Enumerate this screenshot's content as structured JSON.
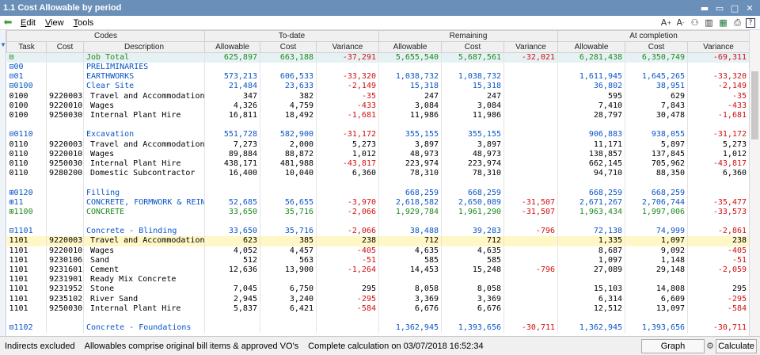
{
  "window": {
    "title": "1.1 Cost  Allowable by period"
  },
  "menu": [
    "Edit",
    "View",
    "Tools"
  ],
  "colors": {
    "titlebar": "#6a8fb8",
    "blue": "#0a55c8",
    "green": "#1c8a1c",
    "red": "#d01010",
    "highlight": "#fff8c6"
  },
  "groups": [
    "Codes",
    "To-date",
    "Remaining",
    "At completion"
  ],
  "columns": [
    "Task",
    "Cost",
    "Description",
    "Allowable",
    "Cost",
    "Variance",
    "Allowable",
    "Cost",
    "Variance",
    "Allowable",
    "Cost",
    "Variance"
  ],
  "rows": [
    {
      "cls": "head-row",
      "task": "⊟",
      "cost": "",
      "desc": "Job Total",
      "vals": [
        "625,897",
        "663,188",
        "-37,291",
        "5,655,540",
        "5,687,561",
        "-32,021",
        "6,281,438",
        "6,350,749",
        "-69,311"
      ],
      "color": "green",
      "valColors": [
        "green",
        "green",
        "red",
        "green",
        "green",
        "red",
        "green",
        "green",
        "red"
      ]
    },
    {
      "task": "⊟00",
      "cost": "",
      "desc": "PRELIMINARIES",
      "vals": [
        "",
        "",
        "",
        "",
        "",
        "",
        "",
        "",
        ""
      ],
      "color": "blue",
      "valColors": []
    },
    {
      "task": "⊟01",
      "cost": "",
      "desc": "EARTHWORKS",
      "vals": [
        "573,213",
        "606,533",
        "-33,320",
        "1,038,732",
        "1,038,732",
        "",
        "1,611,945",
        "1,645,265",
        "-33,320"
      ],
      "color": "blue",
      "valColors": [
        "blue",
        "blue",
        "red",
        "blue",
        "blue",
        "",
        "blue",
        "blue",
        "red"
      ]
    },
    {
      "task": "⊟0100",
      "cost": "",
      "desc": "Clear Site",
      "vals": [
        "21,484",
        "23,633",
        "-2,149",
        "15,318",
        "15,318",
        "",
        "36,802",
        "38,951",
        "-2,149"
      ],
      "color": "blue",
      "valColors": [
        "blue",
        "blue",
        "red",
        "blue",
        "blue",
        "",
        "blue",
        "blue",
        "red"
      ]
    },
    {
      "task": "0100",
      "cost": "9220003",
      "desc": "Travel and Accommodation",
      "vals": [
        "347",
        "382",
        "-35",
        "247",
        "247",
        "",
        "595",
        "629",
        "-35"
      ],
      "color": "blk",
      "valColors": [
        "blk",
        "blk",
        "red",
        "blk",
        "blk",
        "",
        "blk",
        "blk",
        "red"
      ]
    },
    {
      "task": "0100",
      "cost": "9220010",
      "desc": "Wages",
      "vals": [
        "4,326",
        "4,759",
        "-433",
        "3,084",
        "3,084",
        "",
        "7,410",
        "7,843",
        "-433"
      ],
      "color": "blk",
      "valColors": [
        "blk",
        "blk",
        "red",
        "blk",
        "blk",
        "",
        "blk",
        "blk",
        "red"
      ]
    },
    {
      "task": "0100",
      "cost": "9250030",
      "desc": "Internal Plant Hire",
      "vals": [
        "16,811",
        "18,492",
        "-1,681",
        "11,986",
        "11,986",
        "",
        "28,797",
        "30,478",
        "-1,681"
      ],
      "color": "blk",
      "valColors": [
        "blk",
        "blk",
        "red",
        "blk",
        "blk",
        "",
        "blk",
        "blk",
        "red"
      ]
    },
    {
      "cls": "blank",
      "task": "",
      "cost": "",
      "desc": "",
      "vals": [
        "",
        "",
        "",
        "",
        "",
        "",
        "",
        "",
        ""
      ],
      "color": "blk",
      "valColors": []
    },
    {
      "task": "⊟0110",
      "cost": "",
      "desc": "Excavation",
      "vals": [
        "551,728",
        "582,900",
        "-31,172",
        "355,155",
        "355,155",
        "",
        "906,883",
        "938,055",
        "-31,172"
      ],
      "color": "blue",
      "valColors": [
        "blue",
        "blue",
        "red",
        "blue",
        "blue",
        "",
        "blue",
        "blue",
        "red"
      ]
    },
    {
      "task": "0110",
      "cost": "9220003",
      "desc": "Travel and Accommodation",
      "vals": [
        "7,273",
        "2,000",
        "5,273",
        "3,897",
        "3,897",
        "",
        "11,171",
        "5,897",
        "5,273"
      ],
      "color": "blk",
      "valColors": [
        "blk",
        "blk",
        "blk",
        "blk",
        "blk",
        "",
        "blk",
        "blk",
        "blk"
      ]
    },
    {
      "task": "0110",
      "cost": "9220010",
      "desc": "Wages",
      "vals": [
        "89,884",
        "88,872",
        "1,012",
        "48,973",
        "48,973",
        "",
        "138,857",
        "137,845",
        "1,012"
      ],
      "color": "blk",
      "valColors": [
        "blk",
        "blk",
        "blk",
        "blk",
        "blk",
        "",
        "blk",
        "blk",
        "blk"
      ]
    },
    {
      "task": "0110",
      "cost": "9250030",
      "desc": "Internal Plant Hire",
      "vals": [
        "438,171",
        "481,988",
        "-43,817",
        "223,974",
        "223,974",
        "",
        "662,145",
        "705,962",
        "-43,817"
      ],
      "color": "blk",
      "valColors": [
        "blk",
        "blk",
        "red",
        "blk",
        "blk",
        "",
        "blk",
        "blk",
        "red"
      ]
    },
    {
      "task": "0110",
      "cost": "9280200",
      "desc": "Domestic Subcontractor",
      "vals": [
        "16,400",
        "10,040",
        "6,360",
        "78,310",
        "78,310",
        "",
        "94,710",
        "88,350",
        "6,360"
      ],
      "color": "blk",
      "valColors": [
        "blk",
        "blk",
        "blk",
        "blk",
        "blk",
        "",
        "blk",
        "blk",
        "blk"
      ]
    },
    {
      "cls": "blank",
      "task": "",
      "cost": "",
      "desc": "",
      "vals": [
        "",
        "",
        "",
        "",
        "",
        "",
        "",
        "",
        ""
      ],
      "color": "blk",
      "valColors": []
    },
    {
      "task": "⊞0120",
      "cost": "",
      "desc": "Filling",
      "vals": [
        "",
        "",
        "",
        "668,259",
        "668,259",
        "",
        "668,259",
        "668,259",
        ""
      ],
      "color": "blue",
      "valColors": [
        "",
        "",
        "",
        "blue",
        "blue",
        "",
        "blue",
        "blue",
        ""
      ]
    },
    {
      "task": "⊞11",
      "cost": "",
      "desc": "CONCRETE, FORMWORK & REIN",
      "vals": [
        "52,685",
        "56,655",
        "-3,970",
        "2,618,582",
        "2,650,089",
        "-31,507",
        "2,671,267",
        "2,706,744",
        "-35,477"
      ],
      "color": "blue",
      "valColors": [
        "blue",
        "blue",
        "red",
        "blue",
        "blue",
        "red",
        "blue",
        "blue",
        "red"
      ]
    },
    {
      "task": "⊞1100",
      "cost": "",
      "desc": "CONCRETE",
      "vals": [
        "33,650",
        "35,716",
        "-2,066",
        "1,929,784",
        "1,961,290",
        "-31,507",
        "1,963,434",
        "1,997,006",
        "-33,573"
      ],
      "color": "green",
      "valColors": [
        "green",
        "green",
        "red",
        "green",
        "green",
        "red",
        "green",
        "green",
        "red"
      ]
    },
    {
      "cls": "blank",
      "task": "",
      "cost": "",
      "desc": "",
      "vals": [
        "",
        "",
        "",
        "",
        "",
        "",
        "",
        "",
        ""
      ],
      "color": "blk",
      "valColors": []
    },
    {
      "task": "⊟1101",
      "cost": "",
      "desc": "Concrete - Blinding",
      "vals": [
        "33,650",
        "35,716",
        "-2,066",
        "38,488",
        "39,283",
        "-796",
        "72,138",
        "74,999",
        "-2,861"
      ],
      "color": "blue",
      "valColors": [
        "blue",
        "blue",
        "red",
        "blue",
        "blue",
        "red",
        "blue",
        "blue",
        "red"
      ]
    },
    {
      "cls": "hl",
      "task": "1101",
      "cost": "9220003",
      "desc": "Travel and Accommodation",
      "vals": [
        "623",
        "385",
        "238",
        "712",
        "712",
        "",
        "1,335",
        "1,097",
        "238"
      ],
      "color": "blk",
      "valColors": [
        "blk",
        "blk",
        "blk",
        "blk",
        "blk",
        "",
        "blk",
        "blk",
        "blk"
      ]
    },
    {
      "task": "1101",
      "cost": "9220010",
      "desc": "Wages",
      "vals": [
        "4,052",
        "4,457",
        "-405",
        "4,635",
        "4,635",
        "",
        "8,687",
        "9,092",
        "-405"
      ],
      "color": "blk",
      "valColors": [
        "blk",
        "blk",
        "red",
        "blk",
        "blk",
        "",
        "blk",
        "blk",
        "red"
      ]
    },
    {
      "task": "1101",
      "cost": "9230106",
      "desc": "Sand",
      "vals": [
        "512",
        "563",
        "-51",
        "585",
        "585",
        "",
        "1,097",
        "1,148",
        "-51"
      ],
      "color": "blk",
      "valColors": [
        "blk",
        "blk",
        "red",
        "blk",
        "blk",
        "",
        "blk",
        "blk",
        "red"
      ]
    },
    {
      "task": "1101",
      "cost": "9231601",
      "desc": "Cement",
      "vals": [
        "12,636",
        "13,900",
        "-1,264",
        "14,453",
        "15,248",
        "-796",
        "27,089",
        "29,148",
        "-2,059"
      ],
      "color": "blk",
      "valColors": [
        "blk",
        "blk",
        "red",
        "blk",
        "blk",
        "red",
        "blk",
        "blk",
        "red"
      ]
    },
    {
      "task": "1101",
      "cost": "9231901",
      "desc": "Ready Mix Concrete",
      "vals": [
        "",
        "",
        "",
        "",
        "",
        "",
        "",
        "",
        ""
      ],
      "color": "blk",
      "valColors": []
    },
    {
      "task": "1101",
      "cost": "9231952",
      "desc": "Stone",
      "vals": [
        "7,045",
        "6,750",
        "295",
        "8,058",
        "8,058",
        "",
        "15,103",
        "14,808",
        "295"
      ],
      "color": "blk",
      "valColors": [
        "blk",
        "blk",
        "blk",
        "blk",
        "blk",
        "",
        "blk",
        "blk",
        "blk"
      ]
    },
    {
      "task": "1101",
      "cost": "9235102",
      "desc": "River Sand",
      "vals": [
        "2,945",
        "3,240",
        "-295",
        "3,369",
        "3,369",
        "",
        "6,314",
        "6,609",
        "-295"
      ],
      "color": "blk",
      "valColors": [
        "blk",
        "blk",
        "red",
        "blk",
        "blk",
        "",
        "blk",
        "blk",
        "red"
      ]
    },
    {
      "task": "1101",
      "cost": "9250030",
      "desc": "Internal Plant Hire",
      "vals": [
        "5,837",
        "6,421",
        "-584",
        "6,676",
        "6,676",
        "",
        "12,512",
        "13,097",
        "-584"
      ],
      "color": "blk",
      "valColors": [
        "blk",
        "blk",
        "red",
        "blk",
        "blk",
        "",
        "blk",
        "blk",
        "red"
      ]
    },
    {
      "cls": "blank",
      "task": "",
      "cost": "",
      "desc": "",
      "vals": [
        "",
        "",
        "",
        "",
        "",
        "",
        "",
        "",
        ""
      ],
      "color": "blk",
      "valColors": []
    },
    {
      "task": "⊟1102",
      "cost": "",
      "desc": "Concrete - Foundations",
      "vals": [
        "",
        "",
        "",
        "1,362,945",
        "1,393,656",
        "-30,711",
        "1,362,945",
        "1,393,656",
        "-30,711"
      ],
      "color": "blue",
      "valColors": [
        "",
        "",
        "",
        "blue",
        "blue",
        "red",
        "blue",
        "blue",
        "red"
      ]
    }
  ],
  "status": {
    "indirects": "Indirects excluded",
    "allowables": "Allowables comprise original bill items & approved VO's",
    "calc": "Complete calculation on  03/07/2018  16:52:34",
    "graph": "Graph",
    "calculate": "Calculate"
  }
}
